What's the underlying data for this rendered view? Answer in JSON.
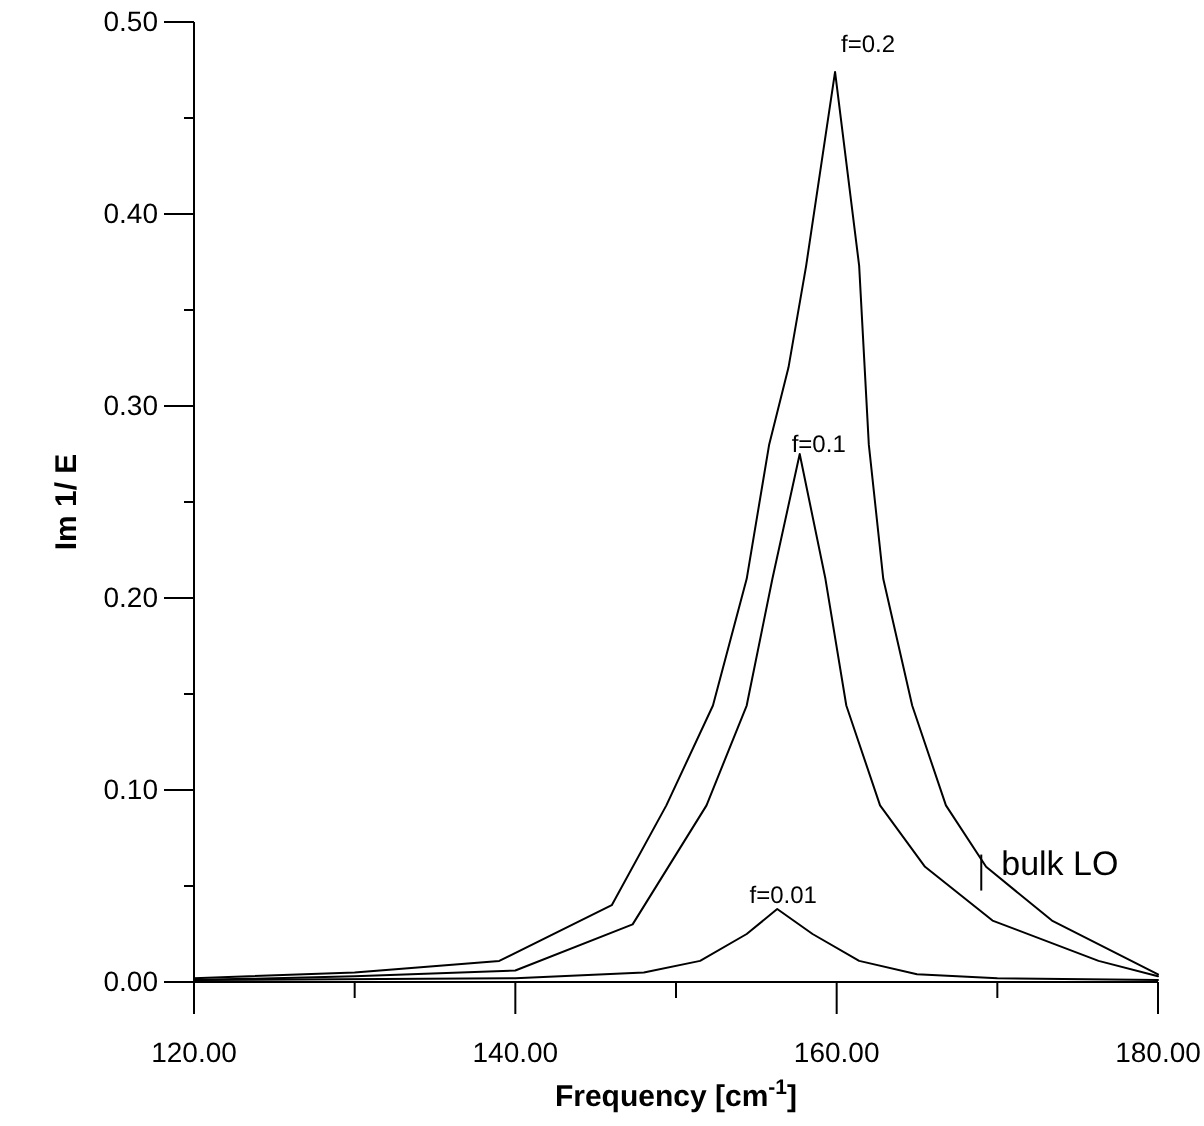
{
  "chart_data": {
    "type": "line",
    "xlabel": "Frequency [cm$^{-1}$]",
    "ylabel": "Im 1/ E",
    "xlim": [
      120,
      180
    ],
    "ylim": [
      0,
      0.5
    ],
    "xticks": [
      {
        "value": 120,
        "label": "120.00"
      },
      {
        "value": 130,
        "label": null
      },
      {
        "value": 140,
        "label": "140.00"
      },
      {
        "value": 150,
        "label": null
      },
      {
        "value": 160,
        "label": "160.00"
      },
      {
        "value": 170,
        "label": null
      },
      {
        "value": 180,
        "label": "180.00"
      }
    ],
    "yticks": [
      {
        "value": 0,
        "label": "0.00"
      },
      {
        "value": 0.05,
        "label": null
      },
      {
        "value": 0.1,
        "label": "0.10"
      },
      {
        "value": 0.15,
        "label": null
      },
      {
        "value": 0.2,
        "label": "0.20"
      },
      {
        "value": 0.25,
        "label": null
      },
      {
        "value": 0.3,
        "label": "0.30"
      },
      {
        "value": 0.35,
        "label": null
      },
      {
        "value": 0.4,
        "label": "0.40"
      },
      {
        "value": 0.45,
        "label": null
      },
      {
        "value": 0.5,
        "label": "0.50"
      }
    ],
    "grid": false,
    "marker": "none",
    "line_style": "solid",
    "series": [
      {
        "name": "f=0.2",
        "color": "#000000",
        "x": [
          120,
          130,
          139,
          146,
          149.4,
          152.3,
          154.4,
          155.8,
          157,
          158.1,
          159.9,
          161.4,
          162,
          162.9,
          164.7,
          166.8,
          169.3,
          173.4,
          180
        ],
        "values": [
          0.002,
          0.005,
          0.011,
          0.04,
          0.092,
          0.144,
          0.21,
          0.28,
          0.32,
          0.373,
          0.474,
          0.373,
          0.28,
          0.21,
          0.144,
          0.092,
          0.06,
          0.032,
          0.004
        ]
      },
      {
        "name": "f=0.1",
        "color": "#000000",
        "x": [
          120,
          130,
          140,
          147.3,
          151.9,
          154.4,
          156,
          157.7,
          159.3,
          160.6,
          162.7,
          165.5,
          169.7,
          176.3,
          180
        ],
        "values": [
          0.001,
          0.003,
          0.006,
          0.03,
          0.092,
          0.144,
          0.21,
          0.275,
          0.21,
          0.144,
          0.092,
          0.06,
          0.032,
          0.011,
          0.003
        ]
      },
      {
        "name": "f=0.01",
        "color": "#000000",
        "x": [
          120,
          140,
          148,
          151.5,
          154.4,
          156.3,
          158.5,
          161.4,
          165,
          170,
          180
        ],
        "values": [
          0.001,
          0.002,
          0.005,
          0.011,
          0.025,
          0.038,
          0.025,
          0.011,
          0.004,
          0.002,
          0.001
        ]
      }
    ],
    "annotations": [
      {
        "text": "bulk LO",
        "x": 169,
        "y": 0.057
      }
    ]
  }
}
